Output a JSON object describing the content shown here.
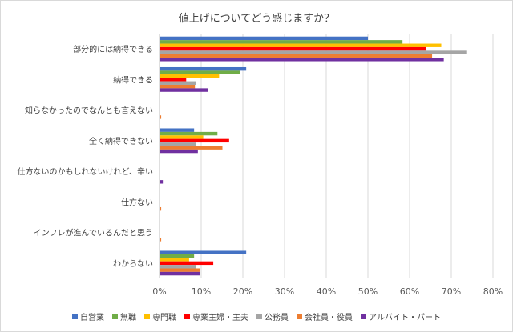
{
  "chart_data": {
    "type": "bar",
    "orientation": "horizontal",
    "title": "値上げについてどう感じますか？",
    "categories": [
      "部分的には納得できる",
      "納得できる",
      "知らなかったのでなんとも言えない",
      "全く納得できない",
      "仕方ないのかもしれないけれど、辛い",
      "仕方ない",
      "インフレが進んでいるんだと思う",
      "わからない"
    ],
    "x_ticks": [
      "0%",
      "10%",
      "20%",
      "30%",
      "40%",
      "50%",
      "60%",
      "70%",
      "80%"
    ],
    "xlim": [
      0,
      80
    ],
    "grid": true,
    "legend_position": "bottom",
    "series": [
      {
        "name": "自営業",
        "color": "#4472C4",
        "values": [
          50,
          20.8,
          0,
          8.3,
          0,
          0,
          0,
          20.8
        ]
      },
      {
        "name": "無職",
        "color": "#70AD47",
        "values": [
          58.3,
          19.4,
          0,
          13.9,
          0,
          0,
          0,
          8.3
        ]
      },
      {
        "name": "専門職",
        "color": "#FFC000",
        "values": [
          67.6,
          14.3,
          0,
          10.5,
          0,
          0,
          0,
          7.1
        ]
      },
      {
        "name": "専業主婦・主夫",
        "color": "#FF0000",
        "values": [
          63.9,
          6.4,
          0,
          16.7,
          0,
          0,
          0,
          12.9
        ]
      },
      {
        "name": "公務員",
        "color": "#A5A5A5",
        "values": [
          73.6,
          8.8,
          0,
          8.8,
          0,
          0,
          0,
          8.8
        ]
      },
      {
        "name": "会社員・役員",
        "color": "#ED7D31",
        "values": [
          65.4,
          8.5,
          0.4,
          15.1,
          0,
          0.4,
          0.4,
          9.7
        ]
      },
      {
        "name": "アルバイト・パート",
        "color": "#7030A0",
        "values": [
          68.2,
          11.6,
          0,
          9.2,
          0.8,
          0,
          0,
          9.7
        ]
      }
    ]
  }
}
